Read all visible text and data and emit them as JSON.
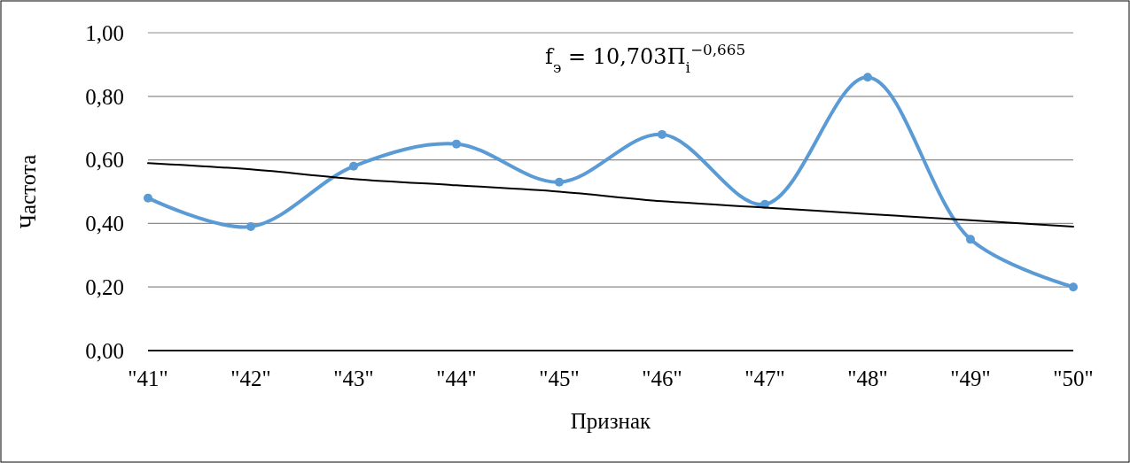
{
  "chart_data": {
    "type": "line",
    "xlabel": "Признак",
    "ylabel": "Частота",
    "categories": [
      "\"41\"",
      "\"42\"",
      "\"43\"",
      "\"44\"",
      "\"45\"",
      "\"46\"",
      "\"47\"",
      "\"48\"",
      "\"49\"",
      "\"50\""
    ],
    "series": [
      {
        "color": "#5b9bd5",
        "marker": "circle",
        "values": [
          0.48,
          0.39,
          0.58,
          0.65,
          0.53,
          0.68,
          0.46,
          0.86,
          0.35,
          0.2
        ]
      },
      {
        "color": "#000000",
        "marker": "none",
        "values": [
          0.59,
          0.57,
          0.54,
          0.52,
          0.5,
          0.47,
          0.45,
          0.43,
          0.41,
          0.39
        ]
      }
    ],
    "ylim": [
      0,
      1
    ],
    "yticks": [
      {
        "value": 0,
        "label": "0,00"
      },
      {
        "value": 0.2,
        "label": "0,20"
      },
      {
        "value": 0.4,
        "label": "0,40"
      },
      {
        "value": 0.6,
        "label": "0,60"
      },
      {
        "value": 0.8,
        "label": "0,80"
      },
      {
        "value": 1,
        "label": "1,00"
      }
    ],
    "grid": "y",
    "annotations": [
      "f$_{э}$ = 10,703П$_{i}$$^{−0,665}$"
    ]
  }
}
